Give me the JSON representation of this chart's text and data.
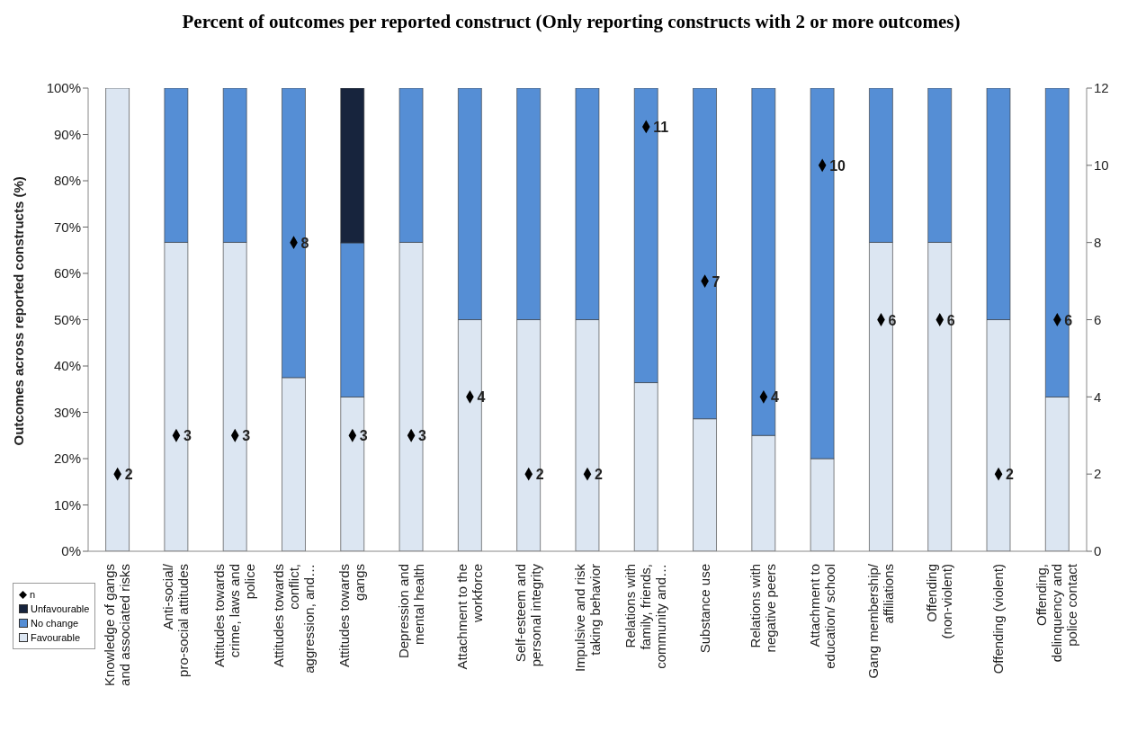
{
  "chart_data": {
    "type": "bar",
    "stacked": true,
    "title": "Percent of outcomes per reported construct (Only reporting constructs with 2 or more outcomes)",
    "ylabel": "Outcomes across reported constructs (%)",
    "categories": [
      "Knowledge of gangs and associated risks",
      "Anti-social/ pro-social attitudes",
      "Attitudes towards crime, laws and police",
      "Attitudes towards conflict, aggression, and…",
      "Attitudes towards gangs",
      "Depression and mental health",
      "Attachment to the workforce",
      "Self-esteem and personal integrity",
      "Impulsive and risk taking behavior",
      "Relations with family, friends, community and…",
      "Substance use",
      "Relations with negative peers",
      "Attachment to education/ school",
      "Gang membership/ affiliations",
      "Offending (non-violent)",
      "Offending (violent)",
      "Offending, delinquency and police contact"
    ],
    "series": [
      {
        "name": "Favourable",
        "color": "#dce6f2",
        "values": [
          100,
          66.7,
          66.7,
          37.5,
          33.3,
          66.7,
          50,
          50,
          50,
          36.4,
          28.6,
          25,
          20,
          66.7,
          66.7,
          50,
          33.3
        ]
      },
      {
        "name": "No change",
        "color": "#558ed5",
        "values": [
          0,
          33.3,
          33.3,
          62.5,
          33.3,
          33.3,
          50,
          50,
          50,
          63.6,
          71.4,
          75,
          80,
          33.3,
          33.3,
          50,
          66.7
        ]
      },
      {
        "name": "Unfavourable",
        "color": "#17243d",
        "values": [
          0,
          0,
          0,
          0,
          33.4,
          0,
          0,
          0,
          0,
          0,
          0,
          0,
          0,
          0,
          0,
          0,
          0
        ]
      },
      {
        "name": "n",
        "type": "scatter",
        "axis": "y2",
        "color": "#000000",
        "marker": "diamond",
        "values": [
          2,
          3,
          3,
          8,
          3,
          3,
          4,
          2,
          2,
          11,
          7,
          4,
          10,
          6,
          6,
          2,
          6
        ],
        "value_labels": [
          "2",
          "3",
          "3",
          "8",
          "3",
          "3",
          "4",
          "2",
          "2",
          "11",
          "7",
          "4",
          "10",
          "6",
          "6",
          "2",
          "6"
        ]
      }
    ],
    "ylim": [
      0,
      100
    ],
    "yticks": [
      {
        "value": 0,
        "label": "0%"
      },
      {
        "value": 10,
        "label": "10%"
      },
      {
        "value": 20,
        "label": "20%"
      },
      {
        "value": 30,
        "label": "30%"
      },
      {
        "value": 40,
        "label": "40%"
      },
      {
        "value": 50,
        "label": "50%"
      },
      {
        "value": 60,
        "label": "60%"
      },
      {
        "value": 70,
        "label": "70%"
      },
      {
        "value": 80,
        "label": "80%"
      },
      {
        "value": 90,
        "label": "90%"
      },
      {
        "value": 100,
        "label": "100%"
      }
    ],
    "y2lim": [
      0,
      12
    ],
    "y2ticks": [
      0,
      2,
      4,
      6,
      8,
      10,
      12
    ],
    "grid": false,
    "legend": "bottom left"
  }
}
